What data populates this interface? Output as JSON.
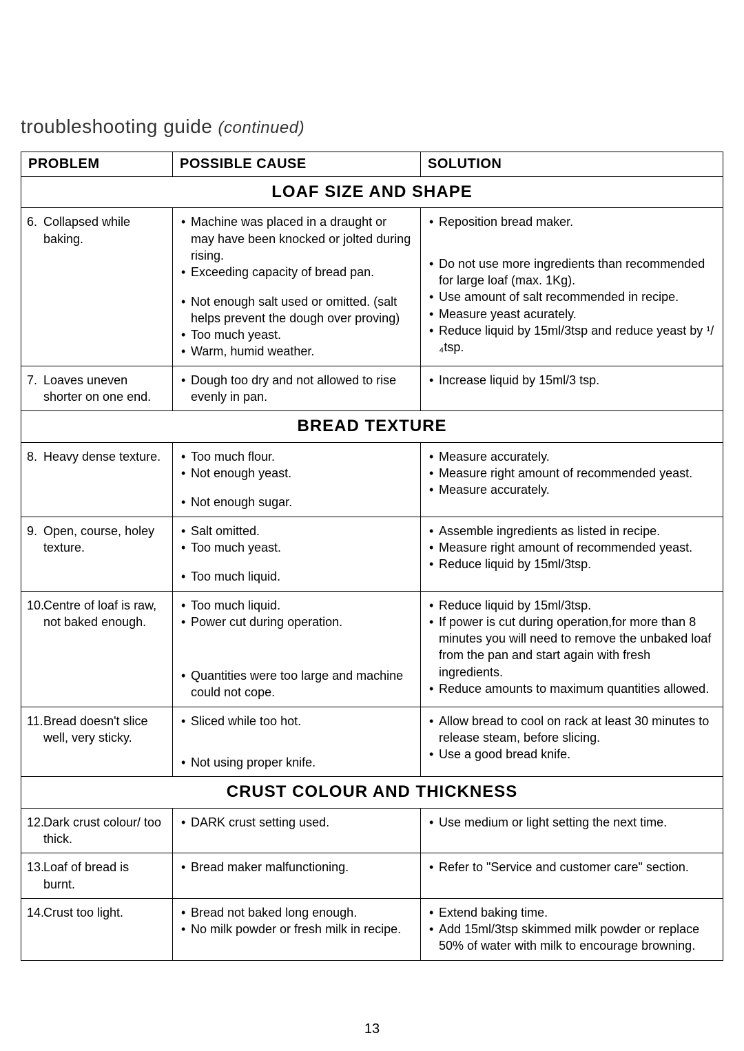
{
  "title_main": "troubleshooting guide ",
  "title_continued": "(continued)",
  "headers": {
    "problem": "PROBLEM",
    "cause": "POSSIBLE CAUSE",
    "solution": "SOLUTION"
  },
  "sections": [
    {
      "title": "LOAF SIZE AND SHAPE",
      "rows": [
        {
          "num": "6.",
          "problem": "Collapsed while baking.",
          "causes": [
            "Machine was placed in a draught or may have been knocked or jolted during rising.",
            "Exceeding capacity of bread pan.",
            "",
            "Not enough salt used or omitted. (salt helps prevent the dough over proving)",
            "Too much yeast.",
            "Warm, humid weather."
          ],
          "solutions": [
            "Reposition bread maker.",
            "",
            "",
            "Do not use more ingredients than recommended for large loaf (max. 1Kg).",
            "Use amount of salt recommended in recipe.",
            "Measure yeast acurately.",
            "Reduce liquid by 15ml/3tsp and reduce yeast by ¹/₄tsp."
          ]
        },
        {
          "num": "7.",
          "problem": "Loaves uneven shorter on one end.",
          "causes": [
            "Dough too dry and not allowed to rise evenly in pan."
          ],
          "solutions": [
            "Increase liquid by 15ml/3 tsp."
          ]
        }
      ]
    },
    {
      "title": "BREAD TEXTURE",
      "rows": [
        {
          "num": "8.",
          "problem": "Heavy dense texture.",
          "causes": [
            "Too much flour.",
            "Not enough yeast.",
            "",
            "Not enough sugar."
          ],
          "solutions": [
            "Measure accurately.",
            "Measure right amount of recommended yeast.",
            "Measure accurately."
          ]
        },
        {
          "num": "9.",
          "problem": "Open, course, holey texture.",
          "causes": [
            "Salt omitted.",
            "Too much yeast.",
            "",
            "Too much liquid."
          ],
          "solutions": [
            "Assemble ingredients as listed in recipe.",
            "Measure right amount of recommended yeast.",
            "Reduce liquid by 15ml/3tsp."
          ]
        },
        {
          "num": "10.",
          "problem": "Centre of loaf is raw, not baked enough.",
          "causes": [
            "Too much liquid.",
            "Power cut during operation.",
            "",
            "",
            "",
            "Quantities were too large and machine could not cope."
          ],
          "solutions": [
            "Reduce liquid by 15ml/3tsp.",
            "If power is cut during operation,for more than 8 minutes you will need to remove the unbaked loaf from the pan and start again with fresh ingredients.",
            "Reduce amounts to maximum quantities allowed."
          ]
        },
        {
          "num": "11.",
          "problem": "Bread doesn't slice well, very sticky.",
          "causes": [
            "Sliced while too hot.",
            "",
            "",
            "Not using proper knife."
          ],
          "solutions": [
            "Allow bread to cool on rack at least 30 minutes to release steam, before slicing.",
            "Use a good bread knife."
          ]
        }
      ]
    },
    {
      "title": "CRUST COLOUR AND THICKNESS",
      "rows": [
        {
          "num": "12.",
          "problem": "Dark crust colour/ too thick.",
          "causes": [
            "DARK crust setting used."
          ],
          "solutions": [
            "Use medium or light setting the next time."
          ]
        },
        {
          "num": "13.",
          "problem": "Loaf of bread is burnt.",
          "causes": [
            "Bread maker malfunctioning."
          ],
          "solutions": [
            "Refer to \"Service and customer care\" section."
          ]
        },
        {
          "num": "14.",
          "problem": "Crust too light.",
          "causes": [
            "Bread not baked long enough.",
            "No milk powder or fresh milk in recipe."
          ],
          "solutions": [
            "Extend baking time.",
            "Add 15ml/3tsp skimmed milk powder or replace 50% of water with milk to encourage browning."
          ]
        }
      ]
    }
  ],
  "page_number": "13"
}
